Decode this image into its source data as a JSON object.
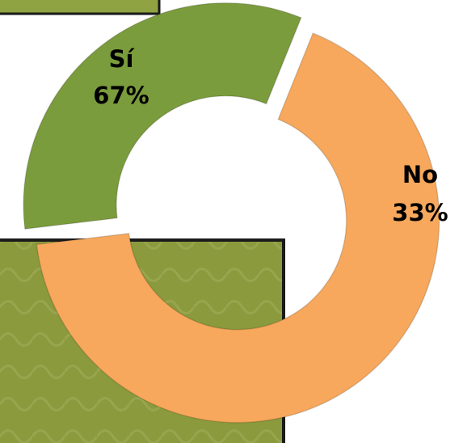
{
  "chart_data": {
    "type": "donut",
    "categories": [
      "Sí",
      "No"
    ],
    "values": [
      67,
      33
    ],
    "value_labels": [
      "67%",
      "33%"
    ],
    "colors": [
      "#f7a85c",
      "#7b9c3c"
    ]
  }
}
